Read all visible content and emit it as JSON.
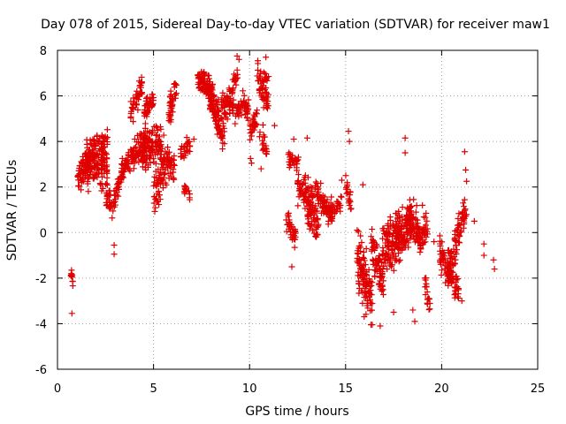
{
  "chart_data": {
    "type": "scatter",
    "title": "Day 078 of 2015, Sidereal Day-to-day VTEC variation (SDTVAR) for receiver maw1",
    "xlabel": "GPS time / hours",
    "ylabel": "SDTVAR / TECUs",
    "xlim": [
      0,
      25
    ],
    "ylim": [
      -6,
      8
    ],
    "xticks": [
      0,
      5,
      10,
      15,
      20,
      25
    ],
    "yticks": [
      -6,
      -4,
      -2,
      0,
      2,
      4,
      6,
      8
    ],
    "xtick_labels": [
      "0",
      "5",
      "10",
      "15",
      "20",
      "25"
    ],
    "ytick_labels": [
      "-6",
      "-4",
      "-2",
      "0",
      "2",
      "4",
      "6",
      "8"
    ],
    "grid": true,
    "marker": "+",
    "color": "#e00000",
    "segments": [
      {
        "x0": 0.7,
        "x1": 0.8,
        "y0": -1.8,
        "y1": -2.4,
        "spread": 0.3,
        "n": 10
      },
      {
        "x0": 1.0,
        "x1": 1.6,
        "y0": 2.3,
        "y1": 3.2,
        "spread": 0.7,
        "n": 60
      },
      {
        "x0": 1.5,
        "x1": 2.3,
        "y0": 3.0,
        "y1": 3.6,
        "spread": 1.0,
        "n": 110
      },
      {
        "x0": 2.2,
        "x1": 2.6,
        "y0": 2.8,
        "y1": 3.2,
        "spread": 0.8,
        "n": 40
      },
      {
        "x0": 2.3,
        "x1": 2.6,
        "y0": 3.8,
        "y1": 4.2,
        "spread": 0.4,
        "n": 20
      },
      {
        "x0": 2.5,
        "x1": 2.9,
        "y0": 1.8,
        "y1": 1.0,
        "spread": 0.5,
        "n": 30
      },
      {
        "x0": 2.9,
        "x1": 3.4,
        "y0": 1.3,
        "y1": 2.8,
        "spread": 0.5,
        "n": 35
      },
      {
        "x0": 3.3,
        "x1": 3.9,
        "y0": 2.6,
        "y1": 3.4,
        "spread": 0.5,
        "n": 40
      },
      {
        "x0": 3.8,
        "x1": 4.4,
        "y0": 5.2,
        "y1": 6.4,
        "spread": 0.5,
        "n": 45
      },
      {
        "x0": 3.9,
        "x1": 4.6,
        "y0": 3.2,
        "y1": 4.2,
        "spread": 0.6,
        "n": 55
      },
      {
        "x0": 4.4,
        "x1": 5.4,
        "y0": 3.6,
        "y1": 4.0,
        "spread": 0.9,
        "n": 110
      },
      {
        "x0": 4.5,
        "x1": 5.0,
        "y0": 5.2,
        "y1": 6.0,
        "spread": 0.5,
        "n": 40
      },
      {
        "x0": 5.0,
        "x1": 5.5,
        "y0": 1.6,
        "y1": 2.6,
        "spread": 0.8,
        "n": 40
      },
      {
        "x0": 5.3,
        "x1": 6.1,
        "y0": 3.4,
        "y1": 2.6,
        "spread": 0.8,
        "n": 70
      },
      {
        "x0": 5.8,
        "x1": 6.2,
        "y0": 5.2,
        "y1": 6.6,
        "spread": 0.6,
        "n": 40
      },
      {
        "x0": 6.4,
        "x1": 6.9,
        "y0": 3.4,
        "y1": 3.8,
        "spread": 0.5,
        "n": 30
      },
      {
        "x0": 6.6,
        "x1": 6.9,
        "y0": 2.0,
        "y1": 1.6,
        "spread": 0.3,
        "n": 15
      },
      {
        "x0": 7.3,
        "x1": 8.2,
        "y0": 6.9,
        "y1": 6.0,
        "spread": 0.5,
        "n": 90
      },
      {
        "x0": 7.9,
        "x1": 8.4,
        "y0": 6.0,
        "y1": 5.0,
        "spread": 0.6,
        "n": 45
      },
      {
        "x0": 8.2,
        "x1": 8.7,
        "y0": 5.2,
        "y1": 4.2,
        "spread": 0.7,
        "n": 45
      },
      {
        "x0": 8.5,
        "x1": 9.6,
        "y0": 5.6,
        "y1": 5.4,
        "spread": 0.5,
        "n": 70
      },
      {
        "x0": 8.9,
        "x1": 9.4,
        "y0": 6.0,
        "y1": 7.0,
        "spread": 0.5,
        "n": 25
      },
      {
        "x0": 9.6,
        "x1": 10.0,
        "y0": 5.8,
        "y1": 5.0,
        "spread": 0.5,
        "n": 30
      },
      {
        "x0": 10.0,
        "x1": 10.4,
        "y0": 4.4,
        "y1": 5.0,
        "spread": 0.6,
        "n": 30
      },
      {
        "x0": 10.4,
        "x1": 11.0,
        "y0": 6.8,
        "y1": 6.0,
        "spread": 0.8,
        "n": 60
      },
      {
        "x0": 10.5,
        "x1": 10.9,
        "y0": 4.6,
        "y1": 3.6,
        "spread": 0.5,
        "n": 20
      },
      {
        "x0": 11.9,
        "x1": 12.4,
        "y0": 0.5,
        "y1": -0.2,
        "spread": 0.6,
        "n": 35
      },
      {
        "x0": 12.0,
        "x1": 12.6,
        "y0": 3.2,
        "y1": 3.0,
        "spread": 0.4,
        "n": 30
      },
      {
        "x0": 12.5,
        "x1": 13.3,
        "y0": 2.0,
        "y1": 1.6,
        "spread": 0.6,
        "n": 60
      },
      {
        "x0": 13.0,
        "x1": 13.6,
        "y0": 1.0,
        "y1": 0.4,
        "spread": 0.8,
        "n": 60
      },
      {
        "x0": 13.4,
        "x1": 14.3,
        "y0": 1.8,
        "y1": 0.8,
        "spread": 0.6,
        "n": 70
      },
      {
        "x0": 14.2,
        "x1": 14.8,
        "y0": 0.8,
        "y1": 1.4,
        "spread": 0.4,
        "n": 25
      },
      {
        "x0": 15.0,
        "x1": 15.3,
        "y0": 2.2,
        "y1": 1.2,
        "spread": 0.4,
        "n": 20
      },
      {
        "x0": 15.6,
        "x1": 16.4,
        "y0": -1.0,
        "y1": -3.2,
        "spread": 1.3,
        "n": 110
      },
      {
        "x0": 16.3,
        "x1": 17.0,
        "y0": -0.4,
        "y1": -2.4,
        "spread": 1.0,
        "n": 70
      },
      {
        "x0": 16.9,
        "x1": 17.8,
        "y0": -0.6,
        "y1": -0.2,
        "spread": 1.2,
        "n": 110
      },
      {
        "x0": 17.6,
        "x1": 18.5,
        "y0": -0.2,
        "y1": 0.4,
        "spread": 1.0,
        "n": 110
      },
      {
        "x0": 18.2,
        "x1": 18.8,
        "y0": 0.8,
        "y1": 0.0,
        "spread": 0.8,
        "n": 60
      },
      {
        "x0": 18.8,
        "x1": 19.3,
        "y0": -0.4,
        "y1": 0.2,
        "spread": 0.8,
        "n": 40
      },
      {
        "x0": 19.1,
        "x1": 19.4,
        "y0": -2.2,
        "y1": -3.0,
        "spread": 0.6,
        "n": 20
      },
      {
        "x0": 19.9,
        "x1": 20.6,
        "y0": -1.0,
        "y1": -1.4,
        "spread": 0.8,
        "n": 60
      },
      {
        "x0": 20.3,
        "x1": 20.9,
        "y0": -1.8,
        "y1": -2.6,
        "spread": 0.6,
        "n": 50
      },
      {
        "x0": 20.6,
        "x1": 21.2,
        "y0": -0.8,
        "y1": 0.8,
        "spread": 0.8,
        "n": 50
      },
      {
        "x0": 21.1,
        "x1": 21.3,
        "y0": 0.6,
        "y1": 1.0,
        "spread": 0.3,
        "n": 10
      }
    ],
    "outliers": [
      [
        0.75,
        -3.55
      ],
      [
        2.95,
        -0.55
      ],
      [
        2.95,
        -0.95
      ],
      [
        7.1,
        4.1
      ],
      [
        9.35,
        7.75
      ],
      [
        9.45,
        7.6
      ],
      [
        10.05,
        3.25
      ],
      [
        10.1,
        3.05
      ],
      [
        10.6,
        2.8
      ],
      [
        10.85,
        7.7
      ],
      [
        11.3,
        4.7
      ],
      [
        12.2,
        -1.5
      ],
      [
        12.3,
        4.1
      ],
      [
        13.0,
        4.15
      ],
      [
        14.8,
        2.3
      ],
      [
        15.15,
        4.45
      ],
      [
        15.2,
        4.0
      ],
      [
        15.9,
        2.1
      ],
      [
        16.8,
        -4.1
      ],
      [
        17.5,
        -3.5
      ],
      [
        18.1,
        4.15
      ],
      [
        18.1,
        3.5
      ],
      [
        18.5,
        -3.4
      ],
      [
        18.6,
        -3.9
      ],
      [
        19.0,
        1.2
      ],
      [
        19.6,
        -0.4
      ],
      [
        20.2,
        -2.2
      ],
      [
        21.2,
        3.55
      ],
      [
        21.25,
        2.75
      ],
      [
        21.3,
        2.25
      ],
      [
        21.7,
        0.5
      ],
      [
        22.2,
        -0.5
      ],
      [
        22.2,
        -1.0
      ],
      [
        22.7,
        -1.2
      ],
      [
        22.75,
        -1.6
      ],
      [
        21.05,
        -3.0
      ]
    ]
  }
}
